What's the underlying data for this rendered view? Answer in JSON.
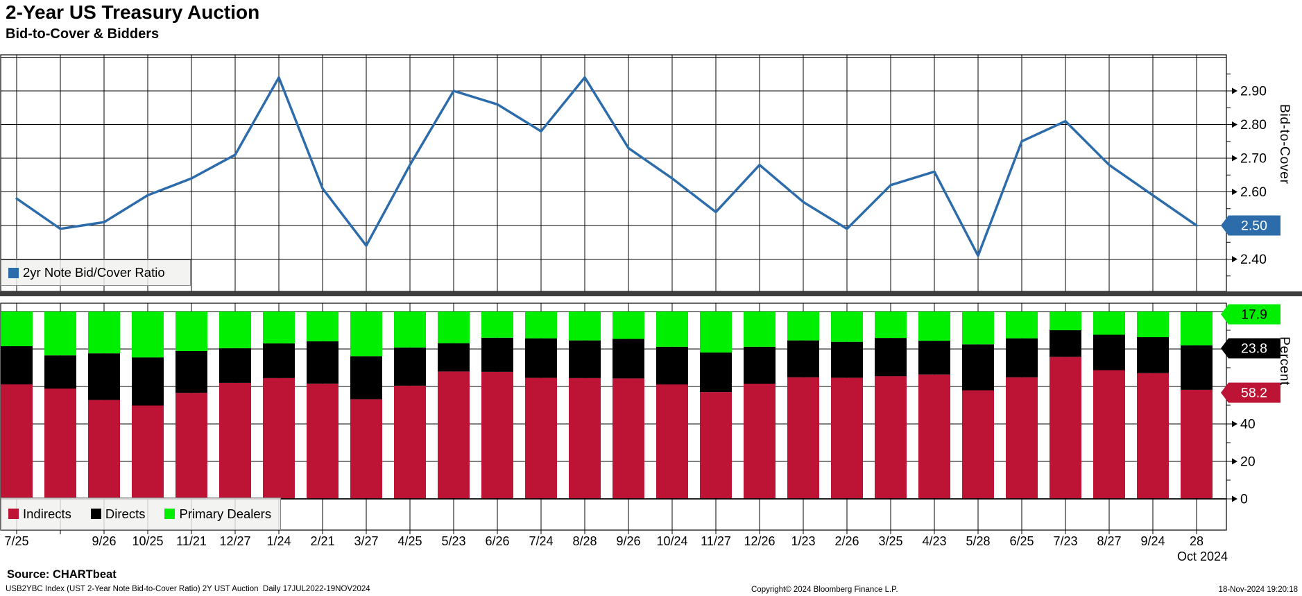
{
  "header": {
    "title": "2-Year US Treasury Auction",
    "subtitle": "Bid-to-Cover & Bidders"
  },
  "chart_data": [
    {
      "type": "line",
      "title": "2-Year US Treasury Auction",
      "subtitle": "Bid-to-Cover & Bidders",
      "name": "2yr Note Bid/Cover Ratio",
      "ylabel": "Bid-to-Cover",
      "ylim": [
        2.3,
        3.02
      ],
      "yticks": [
        2.4,
        2.5,
        2.6,
        2.7,
        2.8,
        2.9
      ],
      "grid": true,
      "legend_position": "bottom-left",
      "line_color": "#2d6cab",
      "categories": [
        "7/25",
        "",
        "9/26",
        "10/25",
        "11/21",
        "12/27",
        "1/24",
        "2/21",
        "3/27",
        "4/25",
        "5/23",
        "6/26",
        "7/24",
        "8/28",
        "9/26",
        "10/24",
        "11/27",
        "12/26",
        "1/23",
        "2/26",
        "3/25",
        "4/23",
        "5/28",
        "6/25",
        "7/23",
        "8/27",
        "9/24",
        "28"
      ],
      "values": [
        2.58,
        2.49,
        2.51,
        2.59,
        2.64,
        2.71,
        2.94,
        2.61,
        2.44,
        2.68,
        2.9,
        2.86,
        2.78,
        2.94,
        2.73,
        2.64,
        2.54,
        2.68,
        2.57,
        2.49,
        2.62,
        2.66,
        2.41,
        2.75,
        2.81,
        2.68,
        2.59,
        2.5
      ],
      "last_value_tag": {
        "label": "2.50",
        "bg": "#2d6cab",
        "fg": "#ffffff"
      }
    },
    {
      "type": "stacked-bar-100",
      "ylabel": "Percent",
      "ylim": [
        0,
        105
      ],
      "yticks": [
        0,
        20,
        40
      ],
      "grid": true,
      "legend_position": "bottom-left",
      "x_axis_note": "Oct 2024",
      "categories": [
        "7/25",
        "",
        "9/26",
        "10/25",
        "11/21",
        "12/27",
        "1/24",
        "2/21",
        "3/27",
        "4/25",
        "5/23",
        "6/26",
        "7/24",
        "8/28",
        "9/26",
        "10/24",
        "11/27",
        "12/26",
        "1/23",
        "2/26",
        "3/25",
        "4/23",
        "5/28",
        "6/25",
        "7/23",
        "8/27",
        "9/24",
        "28"
      ],
      "series": [
        {
          "name": "Indirects",
          "color": "#bd1334",
          "values": [
            61.1,
            58.9,
            52.8,
            49.8,
            56.6,
            61.9,
            64.5,
            61.5,
            53.2,
            60.4,
            68.0,
            67.8,
            64.6,
            64.5,
            64.3,
            61.1,
            57.0,
            61.5,
            64.9,
            64.6,
            65.5,
            66.4,
            58.0,
            64.9,
            75.8,
            68.7,
            67.1,
            58.2
          ]
        },
        {
          "name": "Directs",
          "color": "#000000",
          "values": [
            20.4,
            17.7,
            24.9,
            25.7,
            22.3,
            18.5,
            18.5,
            22.6,
            23.0,
            20.4,
            15.1,
            18.2,
            21.1,
            20.1,
            21.1,
            20.1,
            21.1,
            19.7,
            19.7,
            19.2,
            20.4,
            18.0,
            24.5,
            20.8,
            14.2,
            18.9,
            19.2,
            23.8
          ]
        },
        {
          "name": "Primary Dealers",
          "color": "#00ee00",
          "values": [
            18.5,
            23.4,
            22.3,
            24.5,
            21.1,
            19.6,
            17.0,
            15.9,
            23.8,
            19.2,
            16.9,
            14.0,
            14.3,
            15.4,
            14.6,
            18.8,
            21.9,
            18.8,
            15.4,
            16.2,
            14.1,
            15.6,
            17.5,
            14.3,
            10.0,
            12.4,
            13.7,
            17.9
          ]
        }
      ],
      "value_tags": [
        {
          "at": "Primary Dealers",
          "label": "17.9",
          "bg": "#00ee00",
          "fg": "#000000"
        },
        {
          "at": "Directs",
          "label": "23.8",
          "bg": "#000000",
          "fg": "#ffffff"
        },
        {
          "at": "Indirects",
          "label": "58.2",
          "bg": "#bd1334",
          "fg": "#ffffff"
        }
      ]
    }
  ],
  "footer": {
    "source": "Source: CHARTbeat",
    "description": "USB2YBC Index (UST 2-Year Note Bid-to-Cover Ratio) 2Y UST Auction  Daily 17JUL2022-19NOV2024",
    "copyright": "Copyright© 2024 Bloomberg Finance L.P.",
    "timestamp": "18-Nov-2024 19:20:18"
  }
}
